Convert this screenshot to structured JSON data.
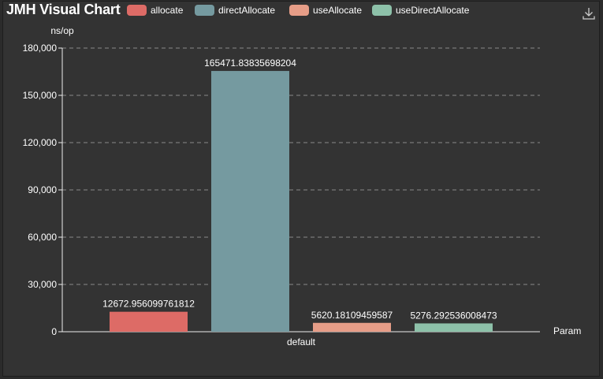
{
  "header": {
    "title": "JMH Visual Chart"
  },
  "toolbar": {
    "download_icon": "download-icon"
  },
  "chart_data": {
    "type": "bar",
    "title": "JMH Visual Chart",
    "xlabel": "Param",
    "ylabel": "ns/op",
    "ylim": [
      0,
      180000
    ],
    "ytick_step": 30000,
    "yticks": [
      "0",
      "30,000",
      "60,000",
      "90,000",
      "120,000",
      "150,000",
      "180,000"
    ],
    "grid": true,
    "legend": "top-left",
    "categories": [
      "default"
    ],
    "series": [
      {
        "name": "allocate",
        "values": [
          12672.956099761812
        ],
        "label": "12672.956099761812",
        "color": "#dd6b66"
      },
      {
        "name": "directAllocate",
        "values": [
          165471.83835698204
        ],
        "label": "165471.83835698204",
        "color": "#759aa0"
      },
      {
        "name": "useAllocate",
        "values": [
          5620.18109459587
        ],
        "label": "5620.18109459587",
        "color": "#e69d87"
      },
      {
        "name": "useDirectAllocate",
        "values": [
          5276.292536008473
        ],
        "label": "5276.292536008473",
        "color": "#8dc1a9"
      }
    ]
  }
}
